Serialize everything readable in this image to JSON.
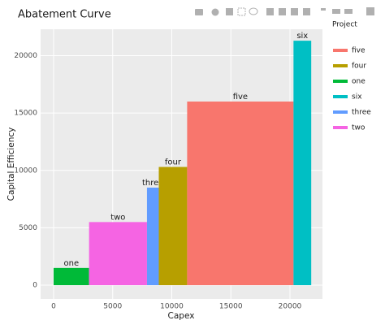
{
  "chart_data": {
    "type": "abatement",
    "title": "Abatement Curve",
    "x_label": "Capex",
    "y_label": "Capital Efficiency",
    "legend_title": "Project",
    "categories": [
      "one",
      "two",
      "three",
      "four",
      "five",
      "six"
    ],
    "capex": [
      3000,
      4900,
      1000,
      2400,
      9000,
      1500
    ],
    "values": [
      1500,
      5500,
      8500,
      10300,
      16000,
      21300
    ],
    "colors": [
      "#00ba38",
      "#f564e3",
      "#619cff",
      "#b79f00",
      "#f8766d",
      "#00bfc4"
    ],
    "xlim": [
      -1100,
      22750
    ],
    "ylim": [
      -1200,
      22300
    ],
    "xticks": [
      0,
      5000,
      10000,
      15000,
      20000
    ],
    "yticks": [
      0,
      5000,
      10000,
      15000,
      20000
    ],
    "grid": true
  }
}
